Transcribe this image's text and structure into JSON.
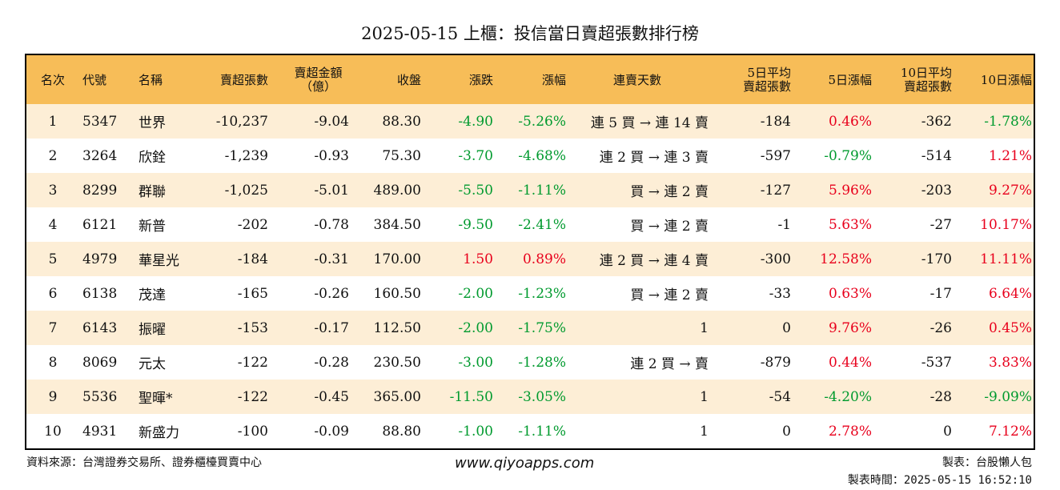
{
  "title": "2025-05-15 上櫃：投信當日賣超張數排行榜",
  "colors": {
    "header_bg": "#f7bd58",
    "odd_row_bg": "#fdeed6",
    "up": "#e8001c",
    "down": "#009a2e"
  },
  "headers": {
    "rank": "名次",
    "code": "代號",
    "name": "名稱",
    "sell_shares": "賣超張數",
    "sell_amount_l1": "賣超金額",
    "sell_amount_l2": "（億）",
    "close": "收盤",
    "change": "漲跌",
    "change_pct": "漲幅",
    "streak": "連賣天數",
    "avg5_l1": "5日平均",
    "avg5_l2": "賣超張數",
    "pct5": "5日漲幅",
    "avg10_l1": "10日平均",
    "avg10_l2": "賣超張數",
    "pct10": "10日漲幅"
  },
  "rows": [
    {
      "rank": "1",
      "code": "5347",
      "name": "世界",
      "sell_shares": "-10,237",
      "sell_amount": "-9.04",
      "close": "88.30",
      "change": "-4.90",
      "change_pct": "-5.26%",
      "streak": "連 5 買 → 連 14 賣",
      "avg5": "-184",
      "pct5": "0.46%",
      "avg10": "-362",
      "pct10": "-1.78%"
    },
    {
      "rank": "2",
      "code": "3264",
      "name": "欣銓",
      "sell_shares": "-1,239",
      "sell_amount": "-0.93",
      "close": "75.30",
      "change": "-3.70",
      "change_pct": "-4.68%",
      "streak": "連 2 買 → 連 3 賣",
      "avg5": "-597",
      "pct5": "-0.79%",
      "avg10": "-514",
      "pct10": "1.21%"
    },
    {
      "rank": "3",
      "code": "8299",
      "name": "群聯",
      "sell_shares": "-1,025",
      "sell_amount": "-5.01",
      "close": "489.00",
      "change": "-5.50",
      "change_pct": "-1.11%",
      "streak": "買 → 連 2 賣",
      "avg5": "-127",
      "pct5": "5.96%",
      "avg10": "-203",
      "pct10": "9.27%"
    },
    {
      "rank": "4",
      "code": "6121",
      "name": "新普",
      "sell_shares": "-202",
      "sell_amount": "-0.78",
      "close": "384.50",
      "change": "-9.50",
      "change_pct": "-2.41%",
      "streak": "買 → 連 2 賣",
      "avg5": "-1",
      "pct5": "5.63%",
      "avg10": "-27",
      "pct10": "10.17%"
    },
    {
      "rank": "5",
      "code": "4979",
      "name": "華星光",
      "sell_shares": "-184",
      "sell_amount": "-0.31",
      "close": "170.00",
      "change": "1.50",
      "change_pct": "0.89%",
      "streak": "連 2 買 → 連 4 賣",
      "avg5": "-300",
      "pct5": "12.58%",
      "avg10": "-170",
      "pct10": "11.11%"
    },
    {
      "rank": "6",
      "code": "6138",
      "name": "茂達",
      "sell_shares": "-165",
      "sell_amount": "-0.26",
      "close": "160.50",
      "change": "-2.00",
      "change_pct": "-1.23%",
      "streak": "買 → 連 2 賣",
      "avg5": "-33",
      "pct5": "0.63%",
      "avg10": "-17",
      "pct10": "6.64%"
    },
    {
      "rank": "7",
      "code": "6143",
      "name": "振曜",
      "sell_shares": "-153",
      "sell_amount": "-0.17",
      "close": "112.50",
      "change": "-2.00",
      "change_pct": "-1.75%",
      "streak": "1",
      "avg5": "0",
      "pct5": "9.76%",
      "avg10": "-26",
      "pct10": "0.45%"
    },
    {
      "rank": "8",
      "code": "8069",
      "name": "元太",
      "sell_shares": "-122",
      "sell_amount": "-0.28",
      "close": "230.50",
      "change": "-3.00",
      "change_pct": "-1.28%",
      "streak": "連 2 買 → 賣",
      "avg5": "-879",
      "pct5": "0.44%",
      "avg10": "-537",
      "pct10": "3.83%"
    },
    {
      "rank": "9",
      "code": "5536",
      "name": "聖暉*",
      "sell_shares": "-122",
      "sell_amount": "-0.45",
      "close": "365.00",
      "change": "-11.50",
      "change_pct": "-3.05%",
      "streak": "1",
      "avg5": "-54",
      "pct5": "-4.20%",
      "avg10": "-28",
      "pct10": "-9.09%"
    },
    {
      "rank": "10",
      "code": "4931",
      "name": "新盛力",
      "sell_shares": "-100",
      "sell_amount": "-0.09",
      "close": "88.80",
      "change": "-1.00",
      "change_pct": "-1.11%",
      "streak": "1",
      "avg5": "0",
      "pct5": "2.78%",
      "avg10": "0",
      "pct10": "7.12%"
    }
  ],
  "footer": {
    "source": "資料來源：台灣證券交易所、證券櫃檯買賣中心",
    "site": "www.qiyoapps.com",
    "maker": "製表：台股懶人包",
    "time": "製表時間：2025-05-15 16:52:10"
  }
}
